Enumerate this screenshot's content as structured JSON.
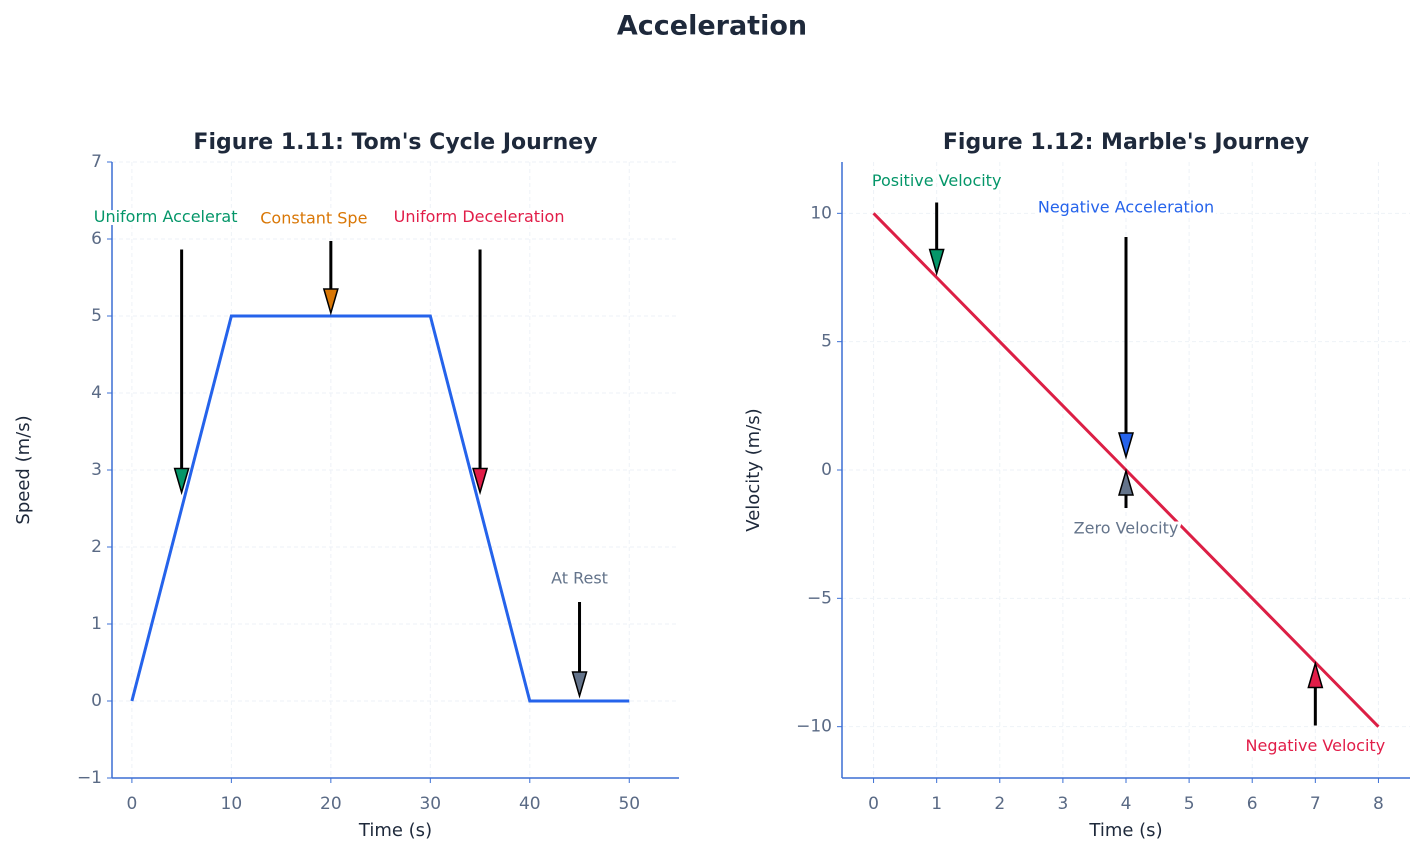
{
  "title": "Acceleration",
  "chart_data": [
    {
      "type": "line",
      "title": "Figure 1.11: Tom's Cycle Journey",
      "x_label": "Time (s)",
      "y_label": "Speed (m/s)",
      "x": [
        0,
        10,
        30,
        40,
        50
      ],
      "values": [
        0,
        5,
        5,
        0,
        0
      ],
      "color": "#2563eb",
      "xlim": [
        -2,
        55
      ],
      "xticks": [
        0,
        10,
        20,
        30,
        40,
        50
      ],
      "ylim": [
        -1,
        7
      ],
      "yticks": [
        {
          "value": -1,
          "label": "−1"
        },
        0,
        1,
        2,
        3,
        4,
        5,
        6,
        7
      ],
      "grid": true,
      "annotations": [
        {
          "text": "Uniform Accelerat",
          "x": 5,
          "y": 2.5,
          "color": "#059669"
        },
        {
          "text": "Constant Spe",
          "x": 20,
          "y": 5,
          "color": "#d97706"
        },
        {
          "text": "Uniform Deceleration",
          "x": 35,
          "y": 2.5,
          "color": "#e11d48"
        },
        {
          "text": "At Rest",
          "x": 45,
          "y": 0,
          "color": "#64748b"
        }
      ]
    },
    {
      "type": "line",
      "title": "Figure 1.12: Marble's Journey",
      "x_label": "Time (s)",
      "y_label": "Velocity (m/s)",
      "x": [
        0,
        1,
        2,
        3,
        4,
        5,
        6,
        7,
        8
      ],
      "values": [
        10,
        7.5,
        5,
        2.5,
        0,
        -2.5,
        -5,
        -7.5,
        -10
      ],
      "color": "#dc1f45",
      "xlim": [
        -0.5,
        8.5
      ],
      "xticks": [
        0,
        1,
        2,
        3,
        4,
        5,
        6,
        7,
        8
      ],
      "ylim": [
        -12,
        12
      ],
      "yticks": [
        {
          "value": -10,
          "label": "−10"
        },
        {
          "value": -5,
          "label": "−5"
        },
        0,
        5,
        10
      ],
      "grid": true,
      "annotations": [
        {
          "text": "Positive Velocity",
          "x": 1,
          "y": 7.5,
          "color": "#059669"
        },
        {
          "text": "Negative Acceleration",
          "x": 4,
          "y": 0,
          "color": "#2563eb"
        },
        {
          "text": "Zero Velocity",
          "x": 4,
          "y": 0,
          "color": "#64748b"
        },
        {
          "text": "Negative Velocity",
          "x": 7,
          "y": -7.5,
          "color": "#e11d48"
        }
      ]
    }
  ]
}
